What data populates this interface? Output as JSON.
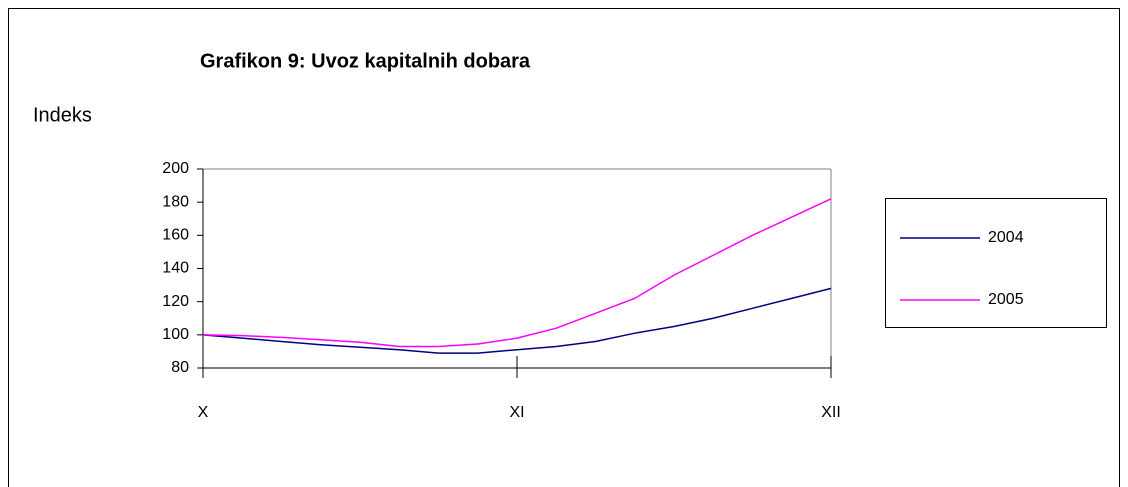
{
  "chart_data": {
    "type": "line",
    "title": "Grafikon 9: Uvoz kapitalnih dobara",
    "ylabel": "Indeks",
    "categories": [
      "X",
      null,
      null,
      null,
      null,
      null,
      null,
      null,
      "XI",
      null,
      null,
      null,
      null,
      null,
      null,
      null,
      "XII"
    ],
    "series": [
      {
        "name": "2004",
        "color": "#000080",
        "values": [
          100,
          98,
          96,
          94,
          92.5,
          91,
          89,
          89,
          91,
          93,
          96,
          101,
          105,
          110,
          116,
          122,
          128
        ]
      },
      {
        "name": "2005",
        "color": "#ff00ff",
        "values": [
          100,
          99.5,
          98.5,
          97,
          95.5,
          93,
          93,
          94.5,
          98,
          104,
          113,
          122,
          136,
          148,
          160,
          171,
          182
        ]
      }
    ],
    "ylim": [
      80,
      200
    ],
    "yticks": [
      80,
      100,
      120,
      140,
      160,
      180,
      200
    ],
    "grid": false,
    "legend": "right"
  }
}
